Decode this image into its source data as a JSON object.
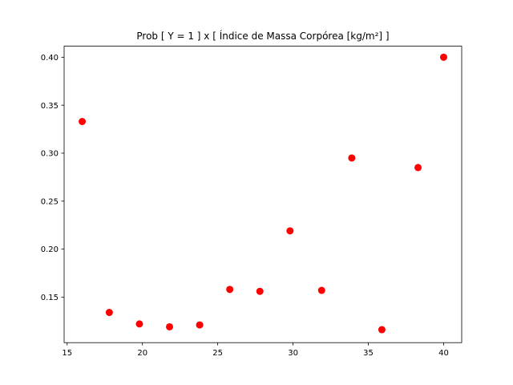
{
  "chart_data": {
    "type": "scatter",
    "title": "Prob [ Y = 1 ] x [ Índice de Massa Corpórea [kg/m²] ]",
    "xlabel": "",
    "ylabel": "",
    "xlim": [
      14.8,
      41.2
    ],
    "ylim": [
      0.1025,
      0.4115
    ],
    "xticks": [
      15,
      20,
      25,
      30,
      35,
      40
    ],
    "yticks": [
      0.15,
      0.2,
      0.25,
      0.3,
      0.35,
      0.4
    ],
    "xtick_labels": [
      "15",
      "20",
      "25",
      "30",
      "35",
      "40"
    ],
    "ytick_labels": [
      "0.15",
      "0.20",
      "0.25",
      "0.30",
      "0.35",
      "0.40"
    ],
    "grid": false,
    "marker_color": "#ff0000",
    "series": [
      {
        "x": [
          16.0,
          17.8,
          19.8,
          21.8,
          23.8,
          25.8,
          27.8,
          29.8,
          31.9,
          33.9,
          35.9,
          38.3,
          40.0
        ],
        "y": [
          0.333,
          0.134,
          0.122,
          0.119,
          0.121,
          0.158,
          0.156,
          0.219,
          0.157,
          0.295,
          0.116,
          0.285,
          0.4
        ]
      }
    ]
  }
}
